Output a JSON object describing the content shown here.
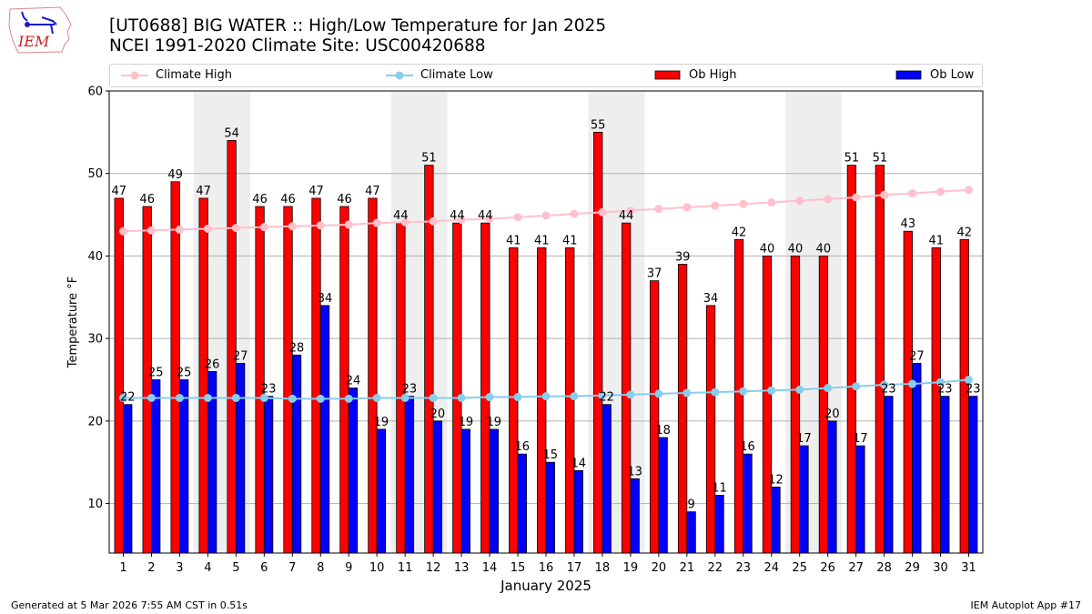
{
  "logo": {
    "text": "IEM"
  },
  "header": {
    "title_line1": "[UT0688] BIG WATER :: High/Low Temperature for Jan 2025",
    "title_line2": "NCEI 1991-2020 Climate Site: USC00420688"
  },
  "legend": {
    "items": [
      {
        "label": "Climate High",
        "kind": "line",
        "color": "#ffc0cb"
      },
      {
        "label": "Climate Low",
        "kind": "line",
        "color": "#87ceeb"
      },
      {
        "label": "Ob High",
        "kind": "bar",
        "color": "#ff0000"
      },
      {
        "label": "Ob Low",
        "kind": "bar",
        "color": "#0000ff"
      }
    ]
  },
  "footer": {
    "left": "Generated at 5 Mar 2026 7:55 AM CST in 0.51s",
    "right": "IEM Autoplot App #17"
  },
  "chart_data": {
    "type": "bar",
    "title": "[UT0688] BIG WATER :: High/Low Temperature for Jan 2025",
    "subtitle": "NCEI 1991-2020 Climate Site: USC00420688",
    "xlabel": "January 2025",
    "ylabel": "Temperature °F",
    "ylim": [
      4,
      60
    ],
    "yticks": [
      10,
      20,
      30,
      40,
      50,
      60
    ],
    "grid": true,
    "legend_position": "top",
    "categories": [
      "1",
      "2",
      "3",
      "4",
      "5",
      "6",
      "7",
      "8",
      "9",
      "10",
      "11",
      "12",
      "13",
      "14",
      "15",
      "16",
      "17",
      "18",
      "19",
      "20",
      "21",
      "22",
      "23",
      "24",
      "25",
      "26",
      "27",
      "28",
      "29",
      "30",
      "31"
    ],
    "weekend_shading": [
      [
        4,
        5
      ],
      [
        11,
        12
      ],
      [
        18,
        19
      ],
      [
        25,
        26
      ]
    ],
    "series": [
      {
        "name": "Ob High",
        "type": "bar",
        "color": "#ff0000",
        "values": [
          47,
          46,
          49,
          47,
          54,
          46,
          46,
          47,
          46,
          47,
          44,
          51,
          44,
          44,
          41,
          41,
          41,
          55,
          44,
          37,
          39,
          34,
          42,
          40,
          40,
          40,
          51,
          51,
          43,
          41,
          42
        ]
      },
      {
        "name": "Ob Low",
        "type": "bar",
        "color": "#0000ff",
        "values": [
          22,
          25,
          25,
          26,
          27,
          23,
          28,
          34,
          24,
          19,
          23,
          20,
          19,
          19,
          16,
          15,
          14,
          22,
          13,
          18,
          9,
          11,
          16,
          12,
          17,
          20,
          17,
          23,
          27,
          23,
          23
        ]
      },
      {
        "name": "Climate High",
        "type": "line",
        "color": "#ffc0cb",
        "values": [
          43.0,
          43.1,
          43.2,
          43.3,
          43.4,
          43.5,
          43.6,
          43.7,
          43.8,
          44.0,
          44.1,
          44.2,
          44.4,
          44.5,
          44.7,
          44.9,
          45.1,
          45.3,
          45.5,
          45.7,
          45.9,
          46.1,
          46.3,
          46.5,
          46.7,
          46.9,
          47.1,
          47.4,
          47.6,
          47.8,
          48.0
        ]
      },
      {
        "name": "Climate Low",
        "type": "line",
        "color": "#87ceeb",
        "values": [
          22.8,
          22.8,
          22.8,
          22.8,
          22.8,
          22.8,
          22.7,
          22.7,
          22.7,
          22.8,
          22.8,
          22.8,
          22.8,
          22.9,
          22.9,
          23.0,
          23.0,
          23.1,
          23.2,
          23.3,
          23.4,
          23.5,
          23.6,
          23.7,
          23.8,
          24.0,
          24.2,
          24.4,
          24.5,
          24.7,
          25.0
        ]
      }
    ]
  }
}
